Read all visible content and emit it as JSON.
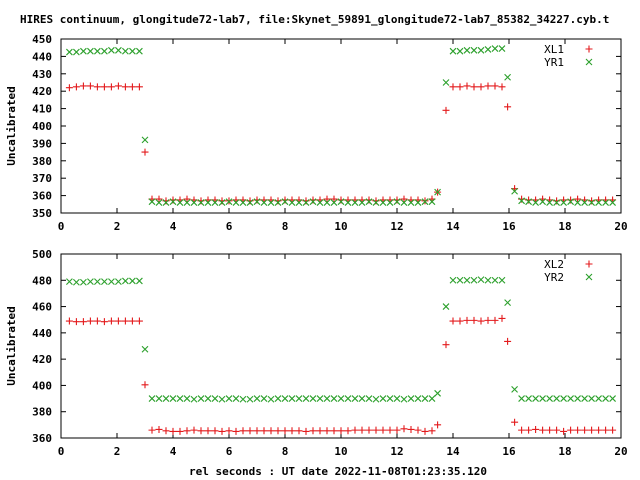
{
  "title": "HIRES continuum, glongitude72-lab7, file:Skynet_59891_glongitude72-lab7_85382_34227.cyb.t",
  "xlabel": "rel seconds : UT date 2022-11-08T01:23:35.120",
  "colors": {
    "xl": "#e31a1c",
    "yr": "#2ca02c"
  },
  "chart_data": [
    {
      "type": "scatter",
      "ylabel": "Uncalibrated",
      "xlim": [
        0,
        20
      ],
      "ylim": [
        350,
        450
      ],
      "xticks": [
        0,
        2,
        4,
        6,
        8,
        10,
        12,
        14,
        16,
        18,
        20
      ],
      "yticks": [
        350,
        360,
        370,
        380,
        390,
        400,
        410,
        420,
        430,
        440,
        450
      ],
      "legend_position": "top-right",
      "series": [
        {
          "name": "XL1",
          "marker": "plus",
          "color": "#e31a1c",
          "x": [
            0.3,
            0.55,
            0.8,
            1.05,
            1.3,
            1.55,
            1.8,
            2.05,
            2.3,
            2.55,
            2.8,
            3.0,
            3.25,
            3.5,
            3.75,
            4.0,
            4.25,
            4.5,
            4.75,
            5.0,
            5.25,
            5.5,
            5.75,
            6.0,
            6.25,
            6.5,
            6.75,
            7.0,
            7.25,
            7.5,
            7.75,
            8.0,
            8.25,
            8.5,
            8.75,
            9.0,
            9.25,
            9.5,
            9.75,
            10.0,
            10.25,
            10.5,
            10.75,
            11.0,
            11.25,
            11.5,
            11.75,
            12.0,
            12.25,
            12.5,
            12.75,
            13.0,
            13.25,
            13.45,
            13.75,
            14.0,
            14.25,
            14.5,
            14.75,
            15.0,
            15.25,
            15.5,
            15.75,
            15.95,
            16.2,
            16.45,
            16.7,
            16.95,
            17.2,
            17.45,
            17.7,
            17.95,
            18.2,
            18.45,
            18.7,
            18.95,
            19.2,
            19.45,
            19.7
          ],
          "y": [
            422,
            422.5,
            423,
            423,
            422.5,
            422.5,
            422.5,
            423,
            422.5,
            422.5,
            422.5,
            385,
            358,
            358,
            357,
            357.5,
            357.5,
            358,
            357.5,
            357,
            357.5,
            357.5,
            357,
            357,
            357.5,
            357.5,
            357,
            357.5,
            357.5,
            357.5,
            357,
            357.5,
            357.5,
            357.5,
            357,
            357.5,
            357.5,
            358,
            358,
            357.5,
            357.5,
            357.5,
            357.5,
            357.5,
            357,
            357.5,
            357.5,
            357.5,
            358,
            357.5,
            357.5,
            357,
            358,
            362,
            409,
            422.5,
            422.5,
            423,
            422.5,
            422.5,
            423,
            423,
            422.5,
            411,
            364,
            358,
            357.5,
            357.5,
            358,
            357.5,
            357,
            357.5,
            357.5,
            358,
            357.5,
            357,
            357.5,
            357.5,
            357.5
          ]
        },
        {
          "name": "YR1",
          "marker": "cross",
          "color": "#2ca02c",
          "x": [
            0.3,
            0.55,
            0.8,
            1.05,
            1.3,
            1.55,
            1.8,
            2.05,
            2.3,
            2.55,
            2.8,
            3.0,
            3.25,
            3.5,
            3.75,
            4.0,
            4.25,
            4.5,
            4.75,
            5.0,
            5.25,
            5.5,
            5.75,
            6.0,
            6.25,
            6.5,
            6.75,
            7.0,
            7.25,
            7.5,
            7.75,
            8.0,
            8.25,
            8.5,
            8.75,
            9.0,
            9.25,
            9.5,
            9.75,
            10.0,
            10.25,
            10.5,
            10.75,
            11.0,
            11.25,
            11.5,
            11.75,
            12.0,
            12.25,
            12.5,
            12.75,
            13.0,
            13.25,
            13.45,
            13.75,
            14.0,
            14.25,
            14.5,
            14.75,
            15.0,
            15.25,
            15.5,
            15.75,
            15.95,
            16.2,
            16.45,
            16.7,
            16.95,
            17.2,
            17.45,
            17.7,
            17.95,
            18.2,
            18.45,
            18.7,
            18.95,
            19.2,
            19.45,
            19.7
          ],
          "y": [
            442.5,
            442.5,
            443,
            443,
            443,
            443,
            443.5,
            443.5,
            443,
            443,
            443,
            392,
            356.5,
            356,
            356,
            356.5,
            356,
            356,
            356,
            356,
            356,
            356,
            356,
            356.5,
            356,
            356,
            356,
            356.5,
            356,
            356,
            356,
            356.5,
            356,
            356,
            356,
            356.5,
            356,
            356,
            356,
            356.5,
            356,
            356,
            356,
            356.5,
            356,
            356,
            356,
            356.5,
            356,
            356,
            356,
            356.5,
            356.5,
            362,
            425,
            443,
            443,
            443.5,
            443.5,
            443.5,
            444,
            444.5,
            444.5,
            428,
            362.5,
            357,
            356.5,
            356,
            356.5,
            356,
            356,
            356,
            356.5,
            356,
            356,
            356,
            356,
            356,
            356
          ]
        }
      ]
    },
    {
      "type": "scatter",
      "ylabel": "Uncalibrated",
      "xlim": [
        0,
        20
      ],
      "ylim": [
        360,
        500
      ],
      "xticks": [
        0,
        2,
        4,
        6,
        8,
        10,
        12,
        14,
        16,
        18,
        20
      ],
      "yticks": [
        360,
        380,
        400,
        420,
        440,
        460,
        480,
        500
      ],
      "legend_position": "top-right",
      "series": [
        {
          "name": "XL2",
          "marker": "plus",
          "color": "#e31a1c",
          "x": [
            0.3,
            0.55,
            0.8,
            1.05,
            1.3,
            1.55,
            1.8,
            2.05,
            2.3,
            2.55,
            2.8,
            3.0,
            3.25,
            3.5,
            3.75,
            4.0,
            4.25,
            4.5,
            4.75,
            5.0,
            5.25,
            5.5,
            5.75,
            6.0,
            6.25,
            6.5,
            6.75,
            7.0,
            7.25,
            7.5,
            7.75,
            8.0,
            8.25,
            8.5,
            8.75,
            9.0,
            9.25,
            9.5,
            9.75,
            10.0,
            10.25,
            10.5,
            10.75,
            11.0,
            11.25,
            11.5,
            11.75,
            12.0,
            12.25,
            12.5,
            12.75,
            13.0,
            13.25,
            13.45,
            13.75,
            14.0,
            14.25,
            14.5,
            14.75,
            15.0,
            15.25,
            15.5,
            15.75,
            15.95,
            16.2,
            16.45,
            16.7,
            16.95,
            17.2,
            17.45,
            17.7,
            17.95,
            18.2,
            18.45,
            18.7,
            18.95,
            19.2,
            19.45,
            19.7
          ],
          "y": [
            449,
            448.5,
            448.5,
            449,
            449,
            448.5,
            449,
            449,
            449,
            449,
            449,
            400.5,
            366,
            366.5,
            365.5,
            365,
            365,
            365.5,
            366,
            365.5,
            365.5,
            365.5,
            365,
            365.5,
            365,
            365.5,
            365.5,
            365.5,
            365.5,
            365.5,
            365.5,
            365.5,
            365.5,
            365.5,
            365,
            365.5,
            365.5,
            365.5,
            365.5,
            365.5,
            365.5,
            366,
            366,
            366,
            366,
            366,
            366,
            366,
            367,
            366.5,
            366,
            365,
            365.5,
            370,
            431,
            449,
            449,
            449.5,
            449.5,
            449,
            449.5,
            449.5,
            451,
            433.5,
            372,
            366,
            366,
            366.5,
            366,
            366,
            366,
            365,
            366,
            366,
            366,
            366,
            366,
            366,
            366
          ]
        },
        {
          "name": "YR2",
          "marker": "cross",
          "color": "#2ca02c",
          "x": [
            0.3,
            0.55,
            0.8,
            1.05,
            1.3,
            1.55,
            1.8,
            2.05,
            2.3,
            2.55,
            2.8,
            3.0,
            3.25,
            3.5,
            3.75,
            4.0,
            4.25,
            4.5,
            4.75,
            5.0,
            5.25,
            5.5,
            5.75,
            6.0,
            6.25,
            6.5,
            6.75,
            7.0,
            7.25,
            7.5,
            7.75,
            8.0,
            8.25,
            8.5,
            8.75,
            9.0,
            9.25,
            9.5,
            9.75,
            10.0,
            10.25,
            10.5,
            10.75,
            11.0,
            11.25,
            11.5,
            11.75,
            12.0,
            12.25,
            12.5,
            12.75,
            13.0,
            13.25,
            13.45,
            13.75,
            14.0,
            14.25,
            14.5,
            14.75,
            15.0,
            15.25,
            15.5,
            15.75,
            15.95,
            16.2,
            16.45,
            16.7,
            16.95,
            17.2,
            17.45,
            17.7,
            17.95,
            18.2,
            18.45,
            18.7,
            18.95,
            19.2,
            19.45,
            19.7
          ],
          "y": [
            479,
            478.5,
            478.5,
            479,
            479,
            479,
            479,
            479,
            479.5,
            479.5,
            479.5,
            427.5,
            390,
            390,
            390,
            390,
            390,
            390,
            389.5,
            390,
            390,
            390,
            389.5,
            390,
            390,
            389.5,
            389.5,
            390,
            390,
            389.5,
            390,
            390,
            390,
            390,
            390,
            390,
            390,
            390,
            390,
            390,
            390,
            390,
            390,
            390,
            389.5,
            390,
            390,
            390,
            389.5,
            390,
            390,
            390,
            390,
            394,
            460,
            480,
            480,
            480,
            480,
            480.5,
            480,
            480,
            480,
            463,
            397,
            390,
            390,
            390,
            390,
            390,
            390,
            390,
            390,
            390,
            390,
            390,
            390,
            390,
            390
          ]
        }
      ]
    }
  ]
}
